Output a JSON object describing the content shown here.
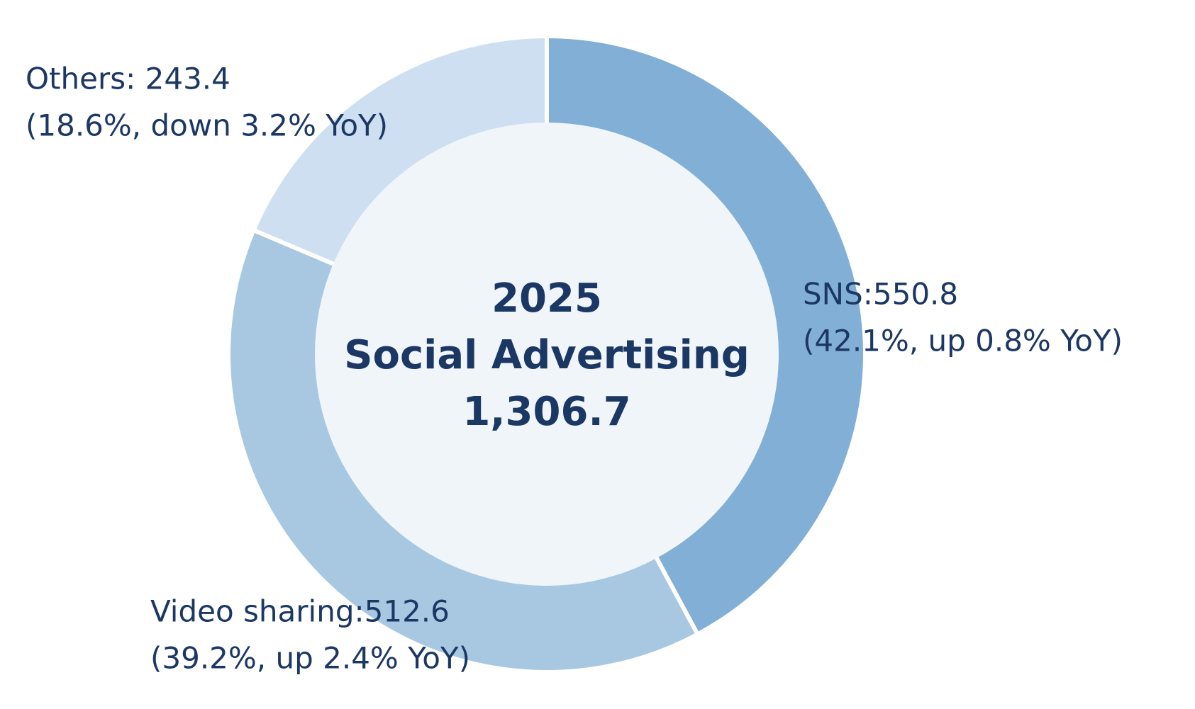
{
  "chart_data": {
    "type": "donut",
    "center_year": "2025",
    "center_title": "Social Advertising",
    "center_total": "1,306.7",
    "labels": [
      "SNS:550.8",
      "Video sharing:512.6",
      "Others: 243.4"
    ],
    "notes": [
      "(42.1%, up 0.8% YoY)",
      "(39.2%, up 2.4% YoY)",
      "(18.6%, down 3.2% YoY)"
    ],
    "values": [
      550.8,
      512.6,
      243.4
    ],
    "colors": [
      "#82afd5",
      "#a8c8e2",
      "#cddff0"
    ],
    "center_color": "#f0f5f9"
  }
}
